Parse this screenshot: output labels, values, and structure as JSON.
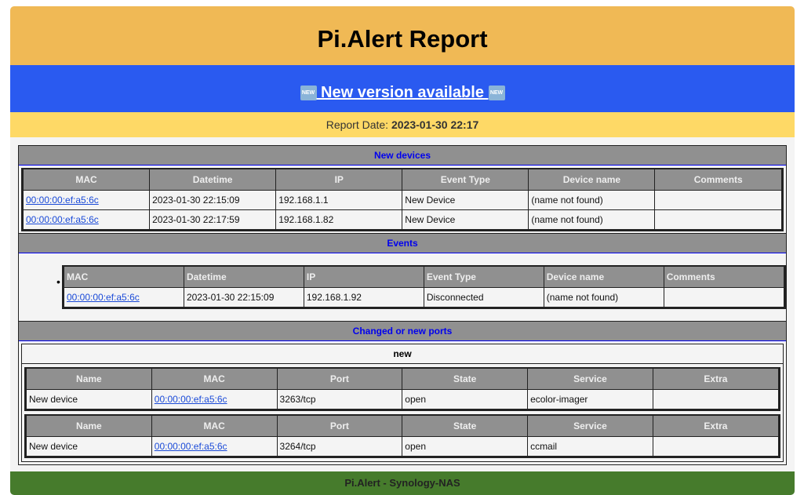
{
  "header": {
    "title": "Pi.Alert Report"
  },
  "banner": {
    "badge": "NEW",
    "link_text": " New version available "
  },
  "report_date": {
    "label": "Report Date: ",
    "value": "2023-01-30 22:17"
  },
  "new_devices": {
    "title": "New devices",
    "columns": [
      "MAC",
      "Datetime",
      "IP",
      "Event Type",
      "Device name",
      "Comments"
    ],
    "rows": [
      [
        "00:00:00:ef:a5:6c",
        "2023-01-30 22:15:09",
        "192.168.1.1",
        "New Device",
        "(name not found)",
        ""
      ],
      [
        "00:00:00:ef:a5:6c",
        "2023-01-30 22:17:59",
        "192.168.1.82",
        "New Device",
        "(name not found)",
        ""
      ]
    ]
  },
  "events": {
    "title": "Events",
    "columns": [
      "MAC",
      "Datetime",
      "IP",
      "Event Type",
      "Device name",
      "Comments"
    ],
    "rows": [
      [
        "00:00:00:ef:a5:6c",
        "2023-01-30 22:15:09",
        "192.168.1.92",
        "Disconnected",
        "(name not found)",
        ""
      ]
    ]
  },
  "ports": {
    "title": "Changed or new ports",
    "group": "new",
    "columns": [
      "Name",
      "MAC",
      "Port",
      "State",
      "Service",
      "Extra"
    ],
    "tables": [
      [
        [
          "New device",
          "00:00:00:ef:a5:6c",
          "3263/tcp",
          "open",
          "ecolor-imager",
          ""
        ]
      ],
      [
        [
          "New device",
          "00:00:00:ef:a5:6c",
          "3264/tcp",
          "open",
          "ccmail",
          ""
        ]
      ]
    ]
  },
  "footer": {
    "text": "Pi.Alert - Synology-NAS"
  },
  "colors": {
    "header": "#f0b955",
    "banner": "#2a5af0",
    "date_bar": "#fed966",
    "footer": "#467b2c",
    "section_title": "#0000ee"
  }
}
